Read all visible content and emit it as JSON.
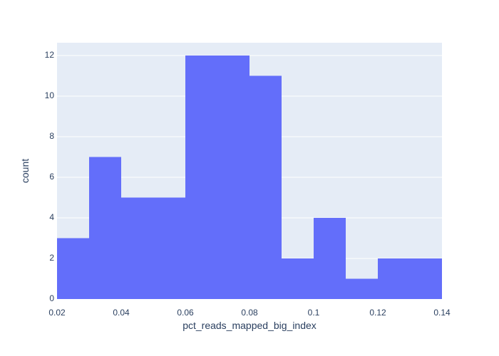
{
  "chart_data": {
    "type": "bar",
    "xlabel": "pct_reads_mapped_big_index",
    "ylabel": "count",
    "xlim": [
      0.02,
      0.14
    ],
    "ylim": [
      0,
      12.63
    ],
    "bin_edges": [
      0.02,
      0.03,
      0.04,
      0.05,
      0.06,
      0.07,
      0.08,
      0.09,
      0.1,
      0.11,
      0.12,
      0.13,
      0.14
    ],
    "values": [
      3,
      7,
      5,
      5,
      12,
      12,
      11,
      2,
      4,
      1,
      2,
      2
    ],
    "x_ticks": [
      {
        "value": 0.02,
        "label": "0.02"
      },
      {
        "value": 0.04,
        "label": "0.04"
      },
      {
        "value": 0.06,
        "label": "0.06"
      },
      {
        "value": 0.08,
        "label": "0.08"
      },
      {
        "value": 0.1,
        "label": "0.1"
      },
      {
        "value": 0.12,
        "label": "0.12"
      },
      {
        "value": 0.14,
        "label": "0.14"
      }
    ],
    "y_ticks": [
      {
        "value": 0,
        "label": "0"
      },
      {
        "value": 2,
        "label": "2"
      },
      {
        "value": 4,
        "label": "4"
      },
      {
        "value": 6,
        "label": "6"
      },
      {
        "value": 8,
        "label": "8"
      },
      {
        "value": 10,
        "label": "10"
      },
      {
        "value": 12,
        "label": "12"
      }
    ],
    "grid": true,
    "colors": {
      "bar": "#636efa",
      "plot_background": "#e5ecf6",
      "grid": "#ffffff",
      "text": "#2a3f5f"
    }
  }
}
